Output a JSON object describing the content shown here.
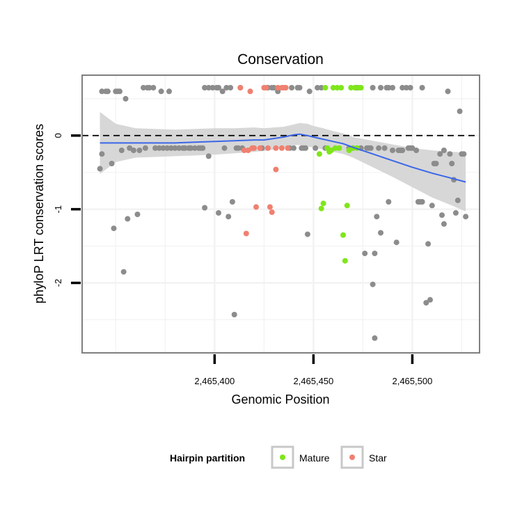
{
  "chart_data": {
    "type": "scatter",
    "title": "Conservation",
    "xlabel": "Genomic Position",
    "ylabel": "phyloP LRT conservation scores",
    "xlim": [
      2465333,
      2465534
    ],
    "ylim": [
      -2.95,
      0.82
    ],
    "x_ticks": [
      2465400,
      2465450,
      2465500
    ],
    "x_tick_labels": [
      "2,465,400",
      "2,465,450",
      "2,465,500"
    ],
    "y_ticks": [
      0,
      -1,
      -2
    ],
    "y_tick_labels": [
      "0",
      "-1",
      "-2"
    ],
    "grid": true,
    "reference_line": {
      "y": 0,
      "style": "dashed"
    },
    "legend": {
      "title": "Hairpin partition",
      "position": "bottom",
      "entries": [
        {
          "label": "Mature",
          "color": "#7FE61A"
        },
        {
          "label": "Star",
          "color": "#F08070"
        }
      ]
    },
    "colors": {
      "other": "#8C8C8C",
      "Mature": "#7FE61A",
      "Star": "#F08070",
      "smooth": "#3A66E8",
      "band": "#D3D3D3"
    },
    "series": [
      {
        "group": "other",
        "points": [
          [
            2465342,
            -0.45
          ],
          [
            2465343,
            -0.25
          ],
          [
            2465343,
            0.6
          ],
          [
            2465345,
            0.6
          ],
          [
            2465346,
            0.6
          ],
          [
            2465348,
            -0.38
          ],
          [
            2465349,
            -1.26
          ],
          [
            2465350,
            0.6
          ],
          [
            2465351,
            0.6
          ],
          [
            2465352,
            0.6
          ],
          [
            2465353,
            -0.2
          ],
          [
            2465354,
            -1.85
          ],
          [
            2465355,
            0.5
          ],
          [
            2465356,
            -1.13
          ],
          [
            2465357,
            -0.17
          ],
          [
            2465359,
            -0.2
          ],
          [
            2465361,
            -1.07
          ],
          [
            2465362,
            -0.2
          ],
          [
            2465364,
            0.65
          ],
          [
            2465365,
            -0.17
          ],
          [
            2465366,
            0.65
          ],
          [
            2465367,
            0.65
          ],
          [
            2465369,
            0.65
          ],
          [
            2465370,
            -0.17
          ],
          [
            2465372,
            -0.17
          ],
          [
            2465373,
            0.6
          ],
          [
            2465374,
            -0.17
          ],
          [
            2465376,
            -0.17
          ],
          [
            2465377,
            0.6
          ],
          [
            2465378,
            -0.17
          ],
          [
            2465380,
            -0.17
          ],
          [
            2465382,
            -0.17
          ],
          [
            2465384,
            -0.17
          ],
          [
            2465385,
            -0.17
          ],
          [
            2465387,
            -0.17
          ],
          [
            2465388,
            -0.17
          ],
          [
            2465390,
            -0.17
          ],
          [
            2465392,
            -0.17
          ],
          [
            2465393,
            -0.17
          ],
          [
            2465394,
            -0.17
          ],
          [
            2465395,
            0.65
          ],
          [
            2465395,
            -0.98
          ],
          [
            2465397,
            -0.28
          ],
          [
            2465397,
            0.65
          ],
          [
            2465399,
            0.65
          ],
          [
            2465401,
            0.65
          ],
          [
            2465402,
            0.65
          ],
          [
            2465402,
            -1.05
          ],
          [
            2465404,
            0.6
          ],
          [
            2465405,
            -0.17
          ],
          [
            2465406,
            0.65
          ],
          [
            2465407,
            -1.1
          ],
          [
            2465408,
            0.65
          ],
          [
            2465409,
            -0.9
          ],
          [
            2465410,
            -2.43
          ],
          [
            2465411,
            -0.17
          ],
          [
            2465412,
            -0.17
          ],
          [
            2465413,
            0.65
          ],
          [
            2465414,
            -0.17
          ],
          [
            2465424,
            -0.17
          ],
          [
            2465427,
            0.65
          ],
          [
            2465429,
            0.65
          ],
          [
            2465430,
            0.65
          ],
          [
            2465432,
            0.6
          ],
          [
            2465438,
            -0.17
          ],
          [
            2465439,
            0.65
          ],
          [
            2465440,
            -0.17
          ],
          [
            2465442,
            0.65
          ],
          [
            2465443,
            0.65
          ],
          [
            2465444,
            -0.17
          ],
          [
            2465445,
            -0.17
          ],
          [
            2465446,
            -0.17
          ],
          [
            2465447,
            -1.34
          ],
          [
            2465448,
            0.6
          ],
          [
            2465451,
            -0.17
          ],
          [
            2465452,
            0.65
          ],
          [
            2465454,
            0.65
          ],
          [
            2465456,
            -0.17
          ],
          [
            2465468,
            -0.17
          ],
          [
            2465470,
            -0.17
          ],
          [
            2465472,
            0.65
          ],
          [
            2465474,
            -0.17
          ],
          [
            2465476,
            -1.6
          ],
          [
            2465477,
            -0.17
          ],
          [
            2465478,
            -0.17
          ],
          [
            2465479,
            -0.17
          ],
          [
            2465480,
            0.65
          ],
          [
            2465480,
            -2.02
          ],
          [
            2465481,
            -1.6
          ],
          [
            2465481,
            -2.75
          ],
          [
            2465482,
            -1.1
          ],
          [
            2465483,
            -0.17
          ],
          [
            2465484,
            -1.32
          ],
          [
            2465484,
            0.65
          ],
          [
            2465486,
            -0.17
          ],
          [
            2465487,
            0.65
          ],
          [
            2465488,
            0.65
          ],
          [
            2465488,
            -0.9
          ],
          [
            2465490,
            -0.2
          ],
          [
            2465490,
            0.65
          ],
          [
            2465492,
            -1.45
          ],
          [
            2465493,
            -0.2
          ],
          [
            2465494,
            -0.2
          ],
          [
            2465495,
            -0.2
          ],
          [
            2465495,
            0.65
          ],
          [
            2465497,
            0.65
          ],
          [
            2465498,
            -0.17
          ],
          [
            2465499,
            -0.17
          ],
          [
            2465499,
            0.65
          ],
          [
            2465500,
            -0.17
          ],
          [
            2465502,
            -0.2
          ],
          [
            2465503,
            -0.9
          ],
          [
            2465504,
            -0.9
          ],
          [
            2465505,
            0.65
          ],
          [
            2465505,
            -0.9
          ],
          [
            2465507,
            -2.27
          ],
          [
            2465508,
            -1.47
          ],
          [
            2465509,
            -2.23
          ],
          [
            2465510,
            -0.95
          ],
          [
            2465511,
            -0.38
          ],
          [
            2465512,
            -0.38
          ],
          [
            2465514,
            -0.25
          ],
          [
            2465515,
            -1.08
          ],
          [
            2465516,
            -1.2
          ],
          [
            2465516,
            -0.2
          ],
          [
            2465518,
            0.6
          ],
          [
            2465519,
            -0.25
          ],
          [
            2465520,
            -0.38
          ],
          [
            2465521,
            -0.6
          ],
          [
            2465522,
            -1.05
          ],
          [
            2465523,
            -0.88
          ],
          [
            2465524,
            0.33
          ],
          [
            2465525,
            -0.25
          ],
          [
            2465526,
            -0.25
          ],
          [
            2465527,
            -1.1
          ]
        ]
      },
      {
        "group": "Star",
        "points": [
          [
            2465413,
            0.65
          ],
          [
            2465415,
            -0.2
          ],
          [
            2465416,
            -1.33
          ],
          [
            2465417,
            -0.2
          ],
          [
            2465418,
            0.6
          ],
          [
            2465419,
            -0.17
          ],
          [
            2465420,
            -0.17
          ],
          [
            2465421,
            -0.97
          ],
          [
            2465423,
            -0.17
          ],
          [
            2465425,
            0.65
          ],
          [
            2465426,
            0.65
          ],
          [
            2465427,
            -0.17
          ],
          [
            2465428,
            -0.97
          ],
          [
            2465429,
            -1.04
          ],
          [
            2465431,
            -0.17
          ],
          [
            2465431,
            -0.46
          ],
          [
            2465432,
            0.65
          ],
          [
            2465434,
            -0.17
          ],
          [
            2465434,
            0.65
          ],
          [
            2465435,
            0.65
          ],
          [
            2465436,
            0.65
          ],
          [
            2465437,
            -0.17
          ]
        ]
      },
      {
        "group": "Mature",
        "points": [
          [
            2465453,
            -0.25
          ],
          [
            2465454,
            -0.99
          ],
          [
            2465455,
            -0.92
          ],
          [
            2465456,
            0.65
          ],
          [
            2465457,
            -0.17
          ],
          [
            2465458,
            -0.22
          ],
          [
            2465459,
            -0.2
          ],
          [
            2465460,
            0.65
          ],
          [
            2465461,
            -0.17
          ],
          [
            2465462,
            0.65
          ],
          [
            2465463,
            -0.17
          ],
          [
            2465464,
            0.65
          ],
          [
            2465465,
            -1.35
          ],
          [
            2465466,
            -1.7
          ],
          [
            2465467,
            -0.95
          ],
          [
            2465468,
            -0.2
          ],
          [
            2465469,
            0.65
          ],
          [
            2465470,
            -0.17
          ],
          [
            2465471,
            0.65
          ],
          [
            2465472,
            -0.17
          ],
          [
            2465473,
            0.65
          ],
          [
            2465474,
            0.65
          ]
        ]
      }
    ],
    "smooth": {
      "x": [
        2465342,
        2465350,
        2465360,
        2465370,
        2465380,
        2465390,
        2465400,
        2465410,
        2465420,
        2465425,
        2465430,
        2465435,
        2465440,
        2465443,
        2465447,
        2465450,
        2465455,
        2465460,
        2465465,
        2465470,
        2465480,
        2465490,
        2465500,
        2465510,
        2465520,
        2465527
      ],
      "y": [
        -0.1,
        -0.1,
        -0.1,
        -0.1,
        -0.1,
        -0.09,
        -0.08,
        -0.07,
        -0.06,
        -0.06,
        -0.04,
        -0.02,
        0.01,
        0.02,
        0.0,
        -0.02,
        -0.05,
        -0.08,
        -0.11,
        -0.16,
        -0.25,
        -0.34,
        -0.43,
        -0.51,
        -0.58,
        -0.63
      ],
      "lower": [
        -0.52,
        -0.36,
        -0.3,
        -0.29,
        -0.28,
        -0.27,
        -0.26,
        -0.24,
        -0.22,
        -0.21,
        -0.19,
        -0.16,
        -0.13,
        -0.13,
        -0.15,
        -0.16,
        -0.19,
        -0.22,
        -0.25,
        -0.3,
        -0.43,
        -0.56,
        -0.7,
        -0.84,
        -0.95,
        -1.03
      ],
      "upper": [
        0.32,
        0.16,
        0.1,
        0.09,
        0.08,
        0.09,
        0.1,
        0.1,
        0.11,
        0.1,
        0.11,
        0.12,
        0.15,
        0.17,
        0.16,
        0.13,
        0.1,
        0.06,
        0.03,
        -0.02,
        -0.07,
        -0.12,
        -0.17,
        -0.2,
        -0.22,
        -0.23
      ]
    }
  }
}
